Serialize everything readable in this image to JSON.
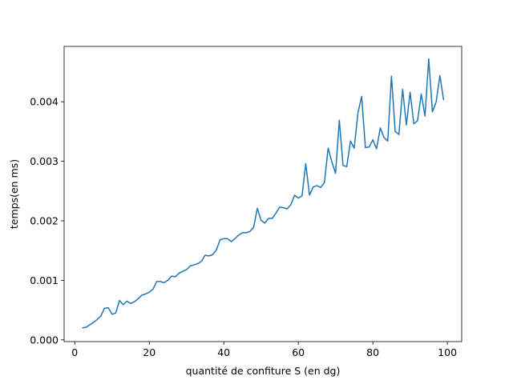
{
  "chart_data": {
    "type": "line",
    "title": "",
    "xlabel": "quantité de confiture S (en dg)",
    "ylabel": "temps(en ms)",
    "xlim": [
      -2.85,
      103.85
    ],
    "ylim": [
      -3e-05,
      0.00493
    ],
    "x_ticks": [
      0,
      20,
      40,
      60,
      80,
      100
    ],
    "y_ticks": [
      0.0,
      0.001,
      0.002,
      0.003,
      0.004
    ],
    "y_tick_labels": [
      "0.000",
      "0.001",
      "0.002",
      "0.003",
      "0.004"
    ],
    "grid": false,
    "legend": "none",
    "line_color": "#1f77b4",
    "series": [
      {
        "x": [
          2,
          3,
          4,
          5,
          6,
          7,
          8,
          9,
          10,
          11,
          12,
          13,
          14,
          15,
          16,
          17,
          18,
          19,
          20,
          21,
          22,
          23,
          24,
          25,
          26,
          27,
          28,
          29,
          30,
          31,
          32,
          33,
          34,
          35,
          36,
          37,
          38,
          39,
          40,
          41,
          42,
          43,
          44,
          45,
          46,
          47,
          48,
          49,
          50,
          51,
          52,
          53,
          54,
          55,
          56,
          57,
          58,
          59,
          60,
          61,
          62,
          63,
          64,
          65,
          66,
          67,
          68,
          69,
          70,
          71,
          72,
          73,
          74,
          75,
          76,
          77,
          78,
          79,
          80,
          81,
          82,
          83,
          84,
          85,
          86,
          87,
          88,
          89,
          90,
          91,
          92,
          93,
          94,
          95,
          96,
          97,
          98,
          99
        ],
        "y": [
          0.0002,
          0.00021,
          0.00025,
          0.00029,
          0.00034,
          0.0004,
          0.00053,
          0.00054,
          0.00043,
          0.00045,
          0.00066,
          0.00059,
          0.00065,
          0.00061,
          0.00064,
          0.00069,
          0.00075,
          0.00077,
          0.0008,
          0.00085,
          0.00098,
          0.00098,
          0.00096,
          0.001,
          0.00107,
          0.00106,
          0.00112,
          0.00115,
          0.00118,
          0.00124,
          0.00126,
          0.00128,
          0.00132,
          0.00142,
          0.00141,
          0.00143,
          0.00151,
          0.00168,
          0.0017,
          0.0017,
          0.00165,
          0.0017,
          0.00176,
          0.0018,
          0.0018,
          0.00182,
          0.00189,
          0.00221,
          0.00201,
          0.00196,
          0.00204,
          0.00204,
          0.00213,
          0.00223,
          0.00222,
          0.0022,
          0.00227,
          0.00243,
          0.00238,
          0.00242,
          0.00296,
          0.00243,
          0.00257,
          0.00259,
          0.00256,
          0.00264,
          0.00322,
          0.00299,
          0.0028,
          0.00369,
          0.00293,
          0.00291,
          0.00334,
          0.00322,
          0.00381,
          0.00409,
          0.00323,
          0.00324,
          0.00336,
          0.00321,
          0.00356,
          0.0034,
          0.00334,
          0.00443,
          0.0035,
          0.00345,
          0.00421,
          0.00361,
          0.00416,
          0.00363,
          0.00368,
          0.00413,
          0.00376,
          0.00472,
          0.00383,
          0.004,
          0.00444,
          0.00403
        ]
      }
    ]
  }
}
